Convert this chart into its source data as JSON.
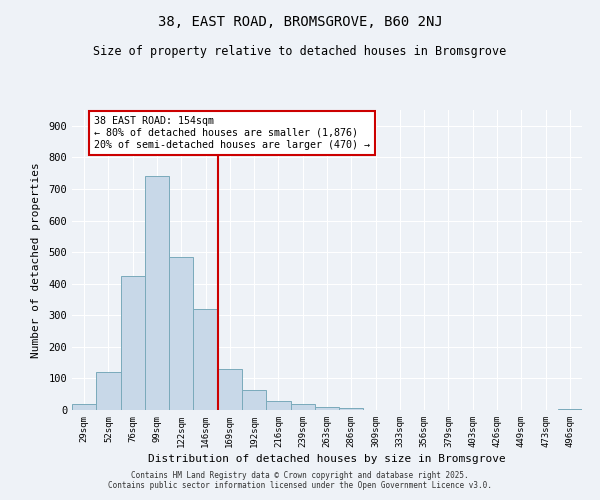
{
  "title": "38, EAST ROAD, BROMSGROVE, B60 2NJ",
  "subtitle": "Size of property relative to detached houses in Bromsgrove",
  "xlabel": "Distribution of detached houses by size in Bromsgrove",
  "ylabel": "Number of detached properties",
  "bin_labels": [
    "29sqm",
    "52sqm",
    "76sqm",
    "99sqm",
    "122sqm",
    "146sqm",
    "169sqm",
    "192sqm",
    "216sqm",
    "239sqm",
    "263sqm",
    "286sqm",
    "309sqm",
    "333sqm",
    "356sqm",
    "379sqm",
    "403sqm",
    "426sqm",
    "449sqm",
    "473sqm",
    "496sqm"
  ],
  "bin_values": [
    20,
    120,
    425,
    740,
    485,
    320,
    130,
    63,
    30,
    18,
    10,
    5,
    0,
    0,
    0,
    0,
    0,
    0,
    0,
    0,
    3
  ],
  "bar_color": "#c8d8e8",
  "bar_edge_color": "#7aaabb",
  "vline_x_index": 5.5,
  "vline_color": "#cc0000",
  "annotation_text": "38 EAST ROAD: 154sqm\n← 80% of detached houses are smaller (1,876)\n20% of semi-detached houses are larger (470) →",
  "annotation_box_color": "#ffffff",
  "annotation_box_edge": "#cc0000",
  "bg_color": "#eef2f7",
  "grid_color": "#ffffff",
  "ylim": [
    0,
    950
  ],
  "yticks": [
    0,
    100,
    200,
    300,
    400,
    500,
    600,
    700,
    800,
    900
  ],
  "footer_line1": "Contains HM Land Registry data © Crown copyright and database right 2025.",
  "footer_line2": "Contains public sector information licensed under the Open Government Licence v3.0."
}
